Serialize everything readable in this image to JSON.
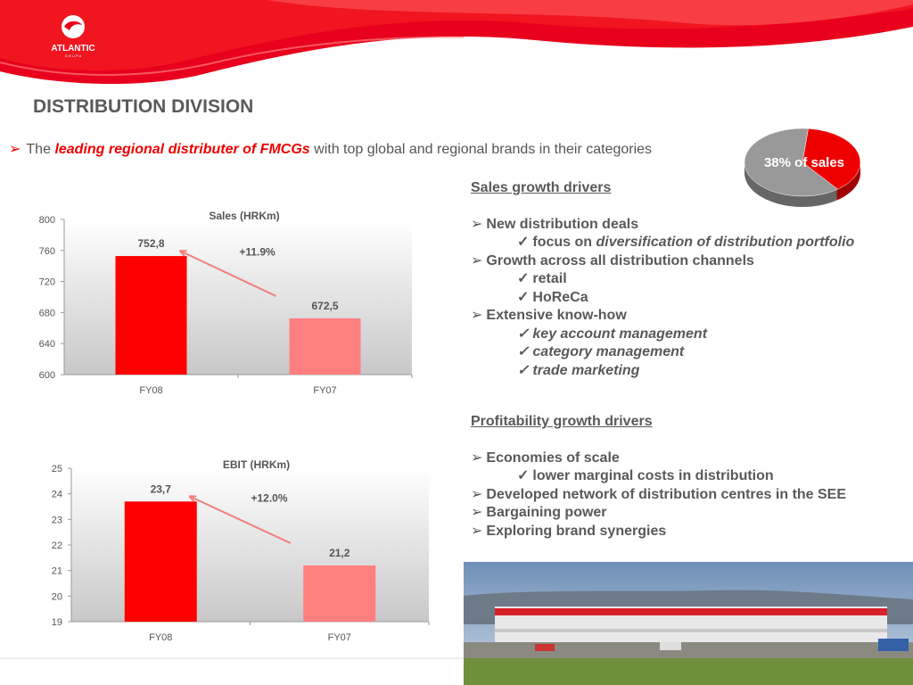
{
  "logo": {
    "name": "ATLANTIC",
    "sub": "G R U P A"
  },
  "title": "DISTRIBUTION DIVISION",
  "intro": {
    "lead": "The",
    "highlight": "leading regional distributer of FMCGs",
    "rest": "with top global and regional brands in their categories"
  },
  "sections": [
    {
      "heading": "Sales growth drivers",
      "items": [
        {
          "text": "New distribution deals",
          "sub": [
            {
              "lead": "focus on",
              "emphasis": "diversification of distribution portfolio"
            }
          ]
        },
        {
          "text": "Growth across all distribution channels",
          "sub": [
            "retail",
            "HoReCa"
          ]
        },
        {
          "text": "Extensive know-how",
          "sub": [
            "key account management",
            "category management",
            "trade marketing"
          ]
        }
      ]
    },
    {
      "heading": "Profitability growth drivers",
      "items": [
        {
          "text": "Economies of scale",
          "sub": [
            "lower marginal costs in distribution"
          ]
        },
        {
          "text": "Developed network of distribution centres in the SEE"
        },
        {
          "text": "Bargaining power"
        },
        {
          "text": "Exploring brand synergies"
        }
      ]
    }
  ],
  "chart_data": [
    {
      "type": "bar",
      "title": "Sales (HRKm)",
      "categories": [
        "FY08",
        "FY07"
      ],
      "values": [
        752.8,
        672.5
      ],
      "value_labels": [
        "752,8",
        "672,5"
      ],
      "colors": [
        "#ff0000",
        "#ff7f7f"
      ],
      "ylim": [
        600,
        800
      ],
      "yticks": [
        600,
        640,
        680,
        720,
        760,
        800
      ],
      "annotation": "+11.9%"
    },
    {
      "type": "bar",
      "title": "EBIT (HRKm)",
      "categories": [
        "FY08",
        "FY07"
      ],
      "values": [
        23.7,
        21.2
      ],
      "value_labels": [
        "23,7",
        "21,2"
      ],
      "colors": [
        "#ff0000",
        "#ff7f7f"
      ],
      "ylim": [
        19,
        25
      ],
      "yticks": [
        19,
        20,
        21,
        22,
        23,
        24,
        25
      ],
      "annotation": "+12.0%"
    },
    {
      "type": "pie",
      "values": [
        38,
        62
      ],
      "value_labels": [
        "38% of sales",
        null
      ],
      "colors": [
        "#ee0000",
        "#999999"
      ]
    }
  ]
}
